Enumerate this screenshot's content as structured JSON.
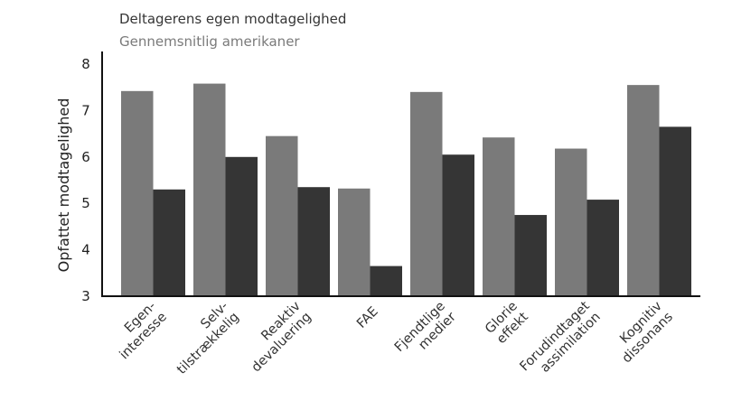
{
  "chart_data": {
    "type": "bar",
    "categories": [
      [
        "Egen-",
        "interesse"
      ],
      [
        "Selv-",
        "tilstrækkelig"
      ],
      [
        "Reaktiv",
        "devaluering"
      ],
      [
        "FAE"
      ],
      [
        "Fjendtlige",
        "medier"
      ],
      [
        "Glorie",
        "effekt"
      ],
      [
        "Forudindtaget",
        "assimilation"
      ],
      [
        "Kognitiv",
        "dissonans"
      ]
    ],
    "series": [
      {
        "name": "Deltagerens egen modtagelighed",
        "color": "#353535",
        "values": [
          5.3,
          6.0,
          5.35,
          3.65,
          6.05,
          4.75,
          5.08,
          6.65
        ]
      },
      {
        "name": "Gennemsnitlig amerikaner",
        "color": "#7a7a7a",
        "values": [
          7.42,
          7.58,
          6.45,
          5.32,
          7.4,
          6.42,
          6.18,
          7.55
        ]
      }
    ],
    "xlabel": "",
    "ylabel": "Opfattet modtagelighed",
    "ylim": [
      3,
      8
    ],
    "yticks": [
      "3",
      "4",
      "5",
      "6",
      "7",
      "8"
    ],
    "grid": false,
    "legend_placement": "top-left"
  }
}
